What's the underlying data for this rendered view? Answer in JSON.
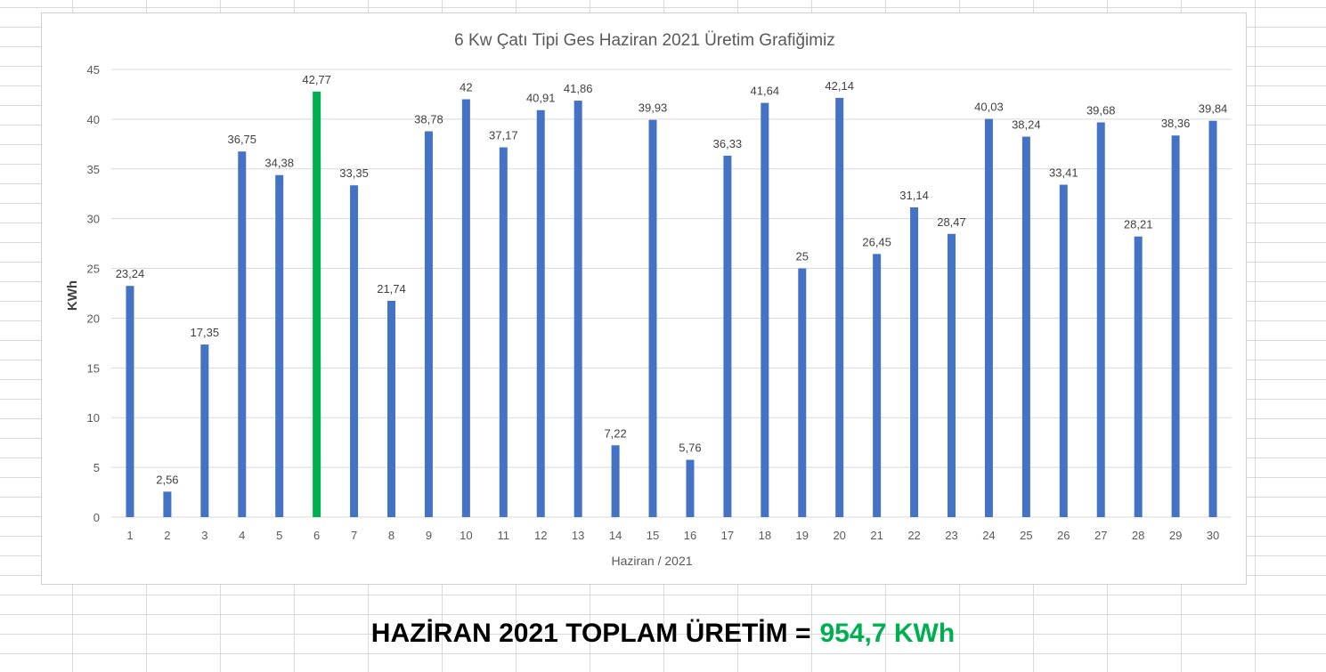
{
  "chart_data": {
    "type": "bar",
    "title": "6 Kw Çatı Tipi Ges Haziran 2021 Üretim Grafiğimiz",
    "xlabel": "Haziran / 2021",
    "ylabel": "KWh",
    "ylim": [
      0,
      45
    ],
    "yticks": [
      "0",
      "5",
      "10",
      "15",
      "20",
      "25",
      "30",
      "35",
      "40",
      "45"
    ],
    "grid": true,
    "categories": [
      "1",
      "2",
      "3",
      "4",
      "5",
      "6",
      "7",
      "8",
      "9",
      "10",
      "11",
      "12",
      "13",
      "14",
      "15",
      "16",
      "17",
      "18",
      "19",
      "20",
      "21",
      "22",
      "23",
      "24",
      "25",
      "26",
      "27",
      "28",
      "29",
      "30"
    ],
    "values": [
      23.24,
      2.56,
      17.35,
      36.75,
      34.38,
      42.77,
      33.35,
      21.74,
      38.78,
      42,
      37.17,
      40.91,
      41.86,
      7.22,
      39.93,
      5.76,
      36.33,
      41.64,
      25,
      42.14,
      26.45,
      31.14,
      28.47,
      40.03,
      38.24,
      33.41,
      39.68,
      28.21,
      38.36,
      39.84
    ],
    "data_labels": [
      "23,24",
      "2,56",
      "17,35",
      "36,75",
      "34,38",
      "42,77",
      "33,35",
      "21,74",
      "38,78",
      "42",
      "37,17",
      "40,91",
      "41,86",
      "7,22",
      "39,93",
      "5,76",
      "36,33",
      "41,64",
      "25",
      "42,14",
      "26,45",
      "31,14",
      "28,47",
      "40,03",
      "38,24",
      "33,41",
      "39,68",
      "28,21",
      "38,36",
      "39,84"
    ],
    "bar_color": "#4472c4",
    "highlight_index": 5,
    "highlight_color": "#00b050"
  },
  "summary": {
    "label": "HAZİRAN 2021 TOPLAM ÜRETİM =",
    "value": "954,7 KWh",
    "value_color": "#00b050"
  }
}
